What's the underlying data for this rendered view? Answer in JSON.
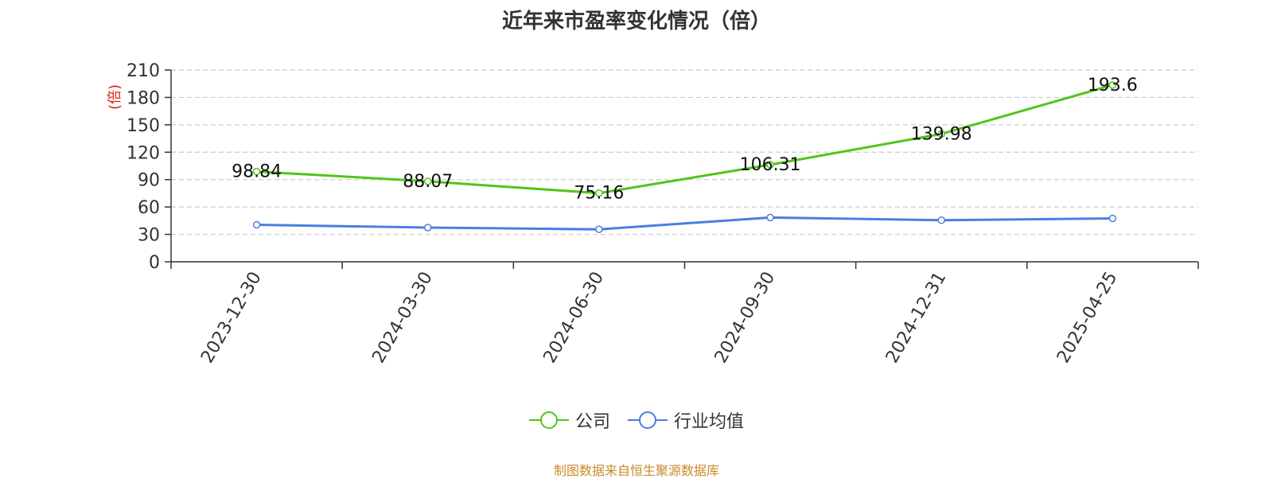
{
  "chart_data": {
    "type": "line",
    "title": "近年来市盈率变化情况（倍）",
    "ylabel": "(倍)",
    "xlabel": "",
    "categories": [
      "2023-12-30",
      "2024-03-30",
      "2024-06-30",
      "2024-09-30",
      "2024-12-31",
      "2025-04-25"
    ],
    "ylim": [
      0,
      210
    ],
    "yticks": [
      0,
      30,
      60,
      90,
      120,
      150,
      180,
      210
    ],
    "grid": "horizontal dashed",
    "legend_position": "bottom",
    "series": [
      {
        "name": "公司",
        "color": "#52c41a",
        "values": [
          98.84,
          88.07,
          75.16,
          106.31,
          139.98,
          193.6
        ],
        "data_labels": [
          "98.84",
          "88.07",
          "75.16",
          "106.31",
          "139.98",
          "193.6"
        ]
      },
      {
        "name": "行业均值",
        "color": "#4a7fe0",
        "values": [
          40.5,
          37.5,
          35.5,
          48.5,
          45.5,
          47.5
        ],
        "data_labels": []
      }
    ]
  },
  "source_note": "制图数据来自恒生聚源数据库"
}
